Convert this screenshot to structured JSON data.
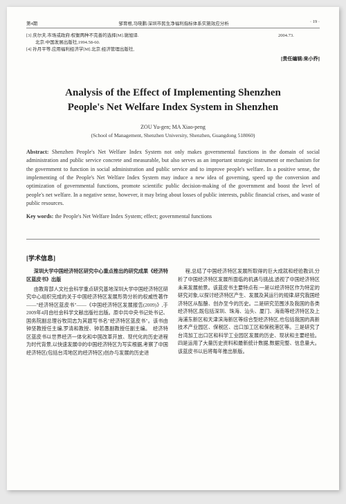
{
  "header": {
    "issue": "第4期",
    "running": "邹育根,马晓鹏:深圳市民生净福利指标体系实施效应分析",
    "pageno": "· 19 ·"
  },
  "refs": [
    {
      "left": "[3] 庆尔夫.市场或政府:权衡两种不完善的选择[M].谢旭译.",
      "right": "2004.73."
    },
    {
      "left": "　　北京:中国发展出版社,1994.58-60.",
      "right": ""
    },
    {
      "left": "[4] 孙月平等.应用福利经济学[M].北京:经济管理出版社,",
      "right": ""
    }
  ],
  "editor": "[责任编辑:来小乔]",
  "title_line1": "Analysis of the Effect of Implementing Shenzhen",
  "title_line2": "People's Net Welfare Index System in Shenzhen",
  "authors": "ZOU Yu-gen; MA Xiao-peng",
  "affil": "(School of Management, Shenzhen University, Shenzhen, Guangdong 518060)",
  "abstract_label": "Abstract:",
  "abstract_text": " Shenzhen People's Net Welfare Index System not only makes governmental functions in the domain of social administration and public service concrete and measurable, but also serves as an important strategic instrument or mechanism for the government to function in social administration and public service and to improve people's welfare. In a positive sense, the implementing of the People's Net Welfare Index System may induce a new idea of governing, speed up the conversion and optimization of governmental functions, promote scientific public decision-making of the government and boost the level of people's net welfare. In a negative sense, however, it may bring about losses of public interests, public financial crises, and waste of public resources.",
  "keywords_label": "Key words:",
  "keywords_text": " the People's Net Welfare Index System; effect; governmental functions",
  "section_label": "[学术信息]",
  "col1_head": "深圳大学中国经济特区研究中心重点推出的研究成果《经济特区蓝皮书》出版",
  "col1_body": "由教育部人文社会科学重点研究基地深圳大学中国经济特区研究中心组织完成的关于中国经济特区发展形势分析的权威性著作——\"经济特区蓝皮书\"——《中国经济特区发展报告(2009)》,于2009年4月由社会科学文献出版社出版。原中共中央书记处书记、国务院副总理谷牧同志为其题写书名\"经济特区蓝皮书\"。该书由钟坚教授任主编,罗清和教授、钟若愚副教授任副主编。　经济特区蓝皮书以世界经济一体化和中国改革开放、现代化的历史进程为时代背景,以快速发展中的中国经济特区为写实根据,考察了中国经济特区(包括台湾地区的经济特区)创办与发展的历史进",
  "col2_body": "程,总结了中国经济特区发展所取得的巨大成就和经验教训,分析了中国经济特区发展所面临的机遇与挑战,透视了中国经济特区未来发展前景。该蓝皮书主要特点有:一是以经济特区作为特定的研究对象,以探讨经济特区产生、发展及其运行的规律,研究我国经济特区从酝酿、创办至今的历史。二是研究范围涉及我国的各类经济特区,既包括深圳、珠海、汕头、厦门、海南等经济特区及上海浦东新区和天津滨海新区等综合型经济特区,也包括我国的高新技术产业园区、保税区、出口加工区和保税港区等。三是研究了台湾加工出口区和科学工业园区发展的历史、现状和主要经验。四是运用了大量历史资料和最新统计数据,数据完整、信息量大。该蓝皮书以后将每年推出新版。"
}
